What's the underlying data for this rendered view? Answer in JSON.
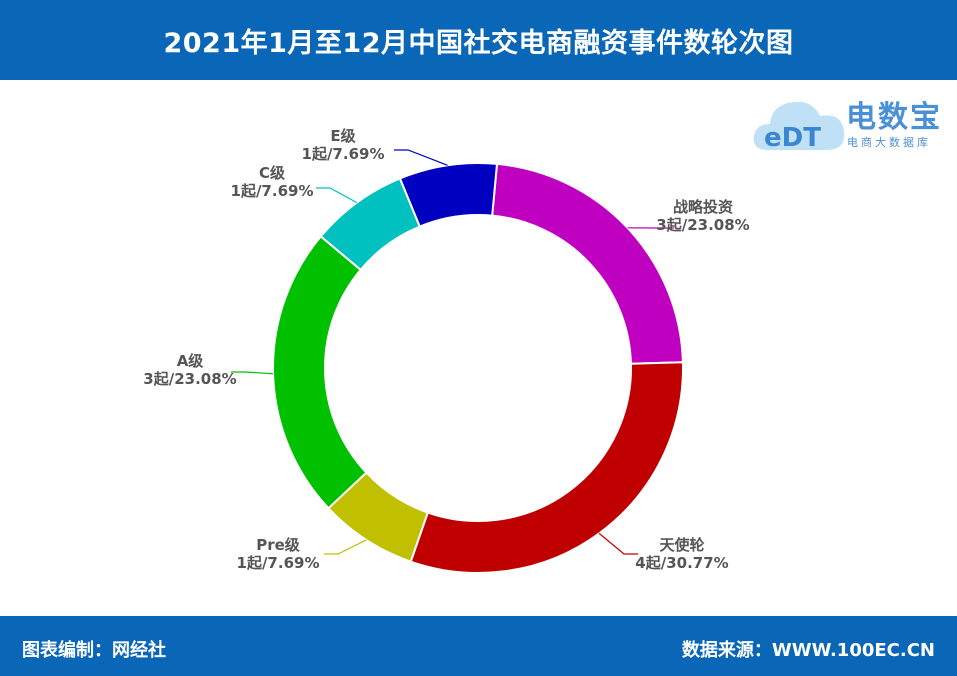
{
  "header": {
    "title": "2021年1月至12月中国社交电商融资事件数轮次图"
  },
  "footer": {
    "left": "图表编制：网经社",
    "right": "数据来源：WWW.100EC.CN"
  },
  "logo": {
    "brand": "电数宝",
    "sub": "电商大数据库",
    "mark": "eDT"
  },
  "chart_data": {
    "type": "pie",
    "donut": true,
    "categories": [
      "战略投资",
      "天使轮",
      "Pre级",
      "A级",
      "C级",
      "E级"
    ],
    "values": [
      3,
      4,
      1,
      3,
      1,
      1
    ],
    "value_labels": [
      "3起/23.08%",
      "4起/30.77%",
      "1起/7.69%",
      "3起/23.08%",
      "1起/7.69%",
      "1起/7.69%"
    ],
    "colors": [
      "#c000c0",
      "#c00000",
      "#c0c000",
      "#00c000",
      "#00c0c0",
      "#0000c0"
    ],
    "total": 13
  }
}
